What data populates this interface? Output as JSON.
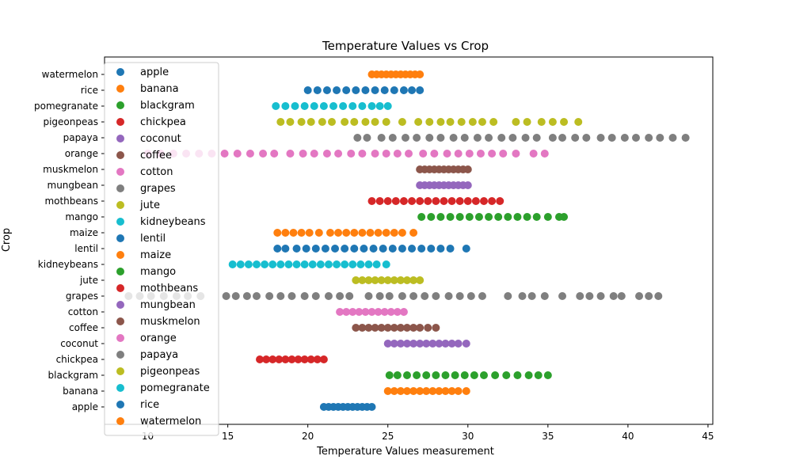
{
  "chart_data": {
    "type": "scatter",
    "title": "Temperature Values vs Crop",
    "xlabel": "Temperature Values measurement",
    "ylabel": "Crop",
    "xlim": [
      7.3,
      45.3
    ],
    "xticks": [
      10,
      15,
      20,
      25,
      30,
      35,
      40,
      45
    ],
    "categories": [
      "apple",
      "banana",
      "blackgram",
      "chickpea",
      "coconut",
      "coffee",
      "cotton",
      "grapes",
      "jute",
      "kidneybeans",
      "lentil",
      "maize",
      "mango",
      "mothbeans",
      "mungbean",
      "muskmelon",
      "orange",
      "papaya",
      "pigeonpeas",
      "pomegranate",
      "rice",
      "watermelon"
    ],
    "legend_position": "upper-left",
    "grid": false,
    "series": [
      {
        "name": "apple",
        "color": "#1f77b4",
        "row": 0,
        "x": [
          21.0,
          21.3,
          21.6,
          21.9,
          22.2,
          22.5,
          22.8,
          23.1,
          23.4,
          23.7,
          24.0
        ]
      },
      {
        "name": "banana",
        "color": "#ff7f0e",
        "row": 1,
        "x": [
          25.0,
          25.4,
          25.8,
          26.2,
          26.6,
          27.0,
          27.4,
          27.8,
          28.2,
          28.6,
          29.0,
          29.4,
          29.9
        ]
      },
      {
        "name": "blackgram",
        "color": "#2ca02c",
        "row": 2,
        "x": [
          25.1,
          25.6,
          26.2,
          26.8,
          27.4,
          28.0,
          28.6,
          29.2,
          29.8,
          30.4,
          31.0,
          31.7,
          32.4,
          33.1,
          33.8,
          34.4,
          35.0
        ]
      },
      {
        "name": "chickpea",
        "color": "#d62728",
        "row": 3,
        "x": [
          17.0,
          17.4,
          17.8,
          18.2,
          18.6,
          19.0,
          19.4,
          19.8,
          20.2,
          20.6,
          21.0
        ]
      },
      {
        "name": "coconut",
        "color": "#9467bd",
        "row": 4,
        "x": [
          25.0,
          25.4,
          25.8,
          26.2,
          26.6,
          27.0,
          27.4,
          27.8,
          28.2,
          28.6,
          29.0,
          29.4,
          29.9
        ]
      },
      {
        "name": "coffee",
        "color": "#8c564b",
        "row": 5,
        "x": [
          23.0,
          23.4,
          23.8,
          24.2,
          24.6,
          25.0,
          25.4,
          25.8,
          26.2,
          26.6,
          27.0,
          27.5,
          28.0
        ]
      },
      {
        "name": "cotton",
        "color": "#e377c2",
        "row": 6,
        "x": [
          22.0,
          22.4,
          22.8,
          23.2,
          23.6,
          24.0,
          24.4,
          24.8,
          25.2,
          25.6,
          26.0
        ]
      },
      {
        "name": "grapes",
        "color": "#7f7f7f",
        "row": 7,
        "x": [
          8.8,
          9.5,
          10.2,
          11.0,
          11.8,
          12.5,
          13.3,
          14.9,
          15.5,
          16.2,
          16.8,
          17.6,
          18.3,
          19.0,
          19.8,
          20.5,
          21.3,
          22.0,
          22.6,
          23.8,
          24.5,
          25.1,
          25.9,
          26.6,
          27.3,
          28.0,
          28.8,
          29.5,
          30.2,
          30.9,
          32.5,
          33.4,
          34.0,
          34.8,
          35.9,
          37.0,
          37.6,
          38.3,
          39.1,
          39.6,
          40.7,
          41.3,
          41.9
        ]
      },
      {
        "name": "jute",
        "color": "#bcbd22",
        "row": 8,
        "x": [
          23.0,
          23.4,
          23.8,
          24.2,
          24.6,
          25.0,
          25.4,
          25.8,
          26.2,
          26.6,
          27.0
        ]
      },
      {
        "name": "kidneybeans",
        "color": "#17becf",
        "row": 9,
        "x": [
          15.3,
          15.8,
          16.3,
          16.8,
          17.3,
          17.8,
          18.3,
          18.8,
          19.3,
          19.8,
          20.3,
          20.8,
          21.3,
          21.8,
          22.3,
          22.8,
          23.3,
          23.8,
          24.3,
          24.9
        ]
      },
      {
        "name": "lentil",
        "color": "#1f77b4",
        "row": 10,
        "x": [
          18.1,
          18.6,
          19.3,
          19.9,
          20.5,
          21.1,
          21.7,
          22.3,
          22.9,
          23.5,
          24.1,
          24.7,
          25.3,
          25.9,
          26.5,
          27.1,
          27.7,
          28.3,
          28.9,
          29.9
        ]
      },
      {
        "name": "maize",
        "color": "#ff7f0e",
        "row": 11,
        "x": [
          18.1,
          18.6,
          19.1,
          19.6,
          20.1,
          20.7,
          21.4,
          21.9,
          22.4,
          22.9,
          23.4,
          23.9,
          24.4,
          24.9,
          25.4,
          25.9,
          26.6
        ]
      },
      {
        "name": "mango",
        "color": "#2ca02c",
        "row": 12,
        "x": [
          27.1,
          27.7,
          28.3,
          28.9,
          29.5,
          30.1,
          30.7,
          31.3,
          31.9,
          32.5,
          33.1,
          33.7,
          34.3,
          35.0,
          35.7,
          36.0
        ]
      },
      {
        "name": "mothbeans",
        "color": "#d62728",
        "row": 13,
        "x": [
          24.0,
          24.5,
          25.0,
          25.5,
          26.0,
          26.5,
          27.0,
          27.5,
          28.0,
          28.5,
          29.0,
          29.5,
          30.0,
          30.5,
          31.0,
          31.5,
          32.0
        ]
      },
      {
        "name": "mungbean",
        "color": "#9467bd",
        "row": 14,
        "x": [
          27.0,
          27.3,
          27.6,
          27.9,
          28.2,
          28.5,
          28.8,
          29.1,
          29.4,
          29.7,
          30.0
        ]
      },
      {
        "name": "muskmelon",
        "color": "#8c564b",
        "row": 15,
        "x": [
          27.0,
          27.3,
          27.6,
          27.9,
          28.2,
          28.5,
          28.8,
          29.1,
          29.4,
          29.7,
          30.0
        ]
      },
      {
        "name": "orange",
        "color": "#e377c2",
        "row": 16,
        "x": [
          10.0,
          10.8,
          11.6,
          12.4,
          13.2,
          14.0,
          14.8,
          15.6,
          16.4,
          17.2,
          17.9,
          18.9,
          19.7,
          20.4,
          21.2,
          21.9,
          22.7,
          23.4,
          24.2,
          24.9,
          25.6,
          26.3,
          27.2,
          27.9,
          28.7,
          29.4,
          30.1,
          30.8,
          31.5,
          32.2,
          33.0,
          34.1,
          34.8
        ]
      },
      {
        "name": "papaya",
        "color": "#7f7f7f",
        "row": 17,
        "x": [
          23.1,
          23.7,
          24.6,
          25.3,
          26.1,
          26.8,
          27.6,
          28.3,
          29.1,
          29.8,
          30.6,
          31.3,
          32.1,
          32.8,
          33.6,
          34.3,
          35.3,
          35.9,
          36.7,
          37.4,
          38.3,
          39.0,
          39.8,
          40.5,
          41.3,
          42.0,
          42.8,
          43.6
        ]
      },
      {
        "name": "pigeonpeas",
        "color": "#bcbd22",
        "row": 18,
        "x": [
          18.3,
          18.9,
          19.6,
          20.2,
          20.9,
          21.5,
          22.3,
          22.9,
          23.6,
          24.2,
          24.9,
          25.9,
          26.9,
          27.6,
          28.3,
          28.9,
          29.6,
          30.3,
          30.9,
          31.6,
          33.0,
          33.7,
          34.6,
          35.3,
          36.0,
          36.9
        ]
      },
      {
        "name": "pomegranate",
        "color": "#17becf",
        "row": 19,
        "x": [
          18.0,
          18.6,
          19.2,
          19.8,
          20.4,
          21.0,
          21.6,
          22.2,
          22.8,
          23.4,
          24.0,
          24.5,
          25.0
        ]
      },
      {
        "name": "rice",
        "color": "#1f77b4",
        "row": 20,
        "x": [
          20.0,
          20.6,
          21.2,
          21.8,
          22.4,
          23.0,
          23.6,
          24.2,
          24.8,
          25.4,
          26.0,
          26.5,
          27.0
        ]
      },
      {
        "name": "watermelon",
        "color": "#ff7f0e",
        "row": 21,
        "x": [
          24.0,
          24.3,
          24.6,
          24.9,
          25.2,
          25.5,
          25.8,
          26.1,
          26.4,
          26.7,
          27.0
        ]
      }
    ]
  }
}
